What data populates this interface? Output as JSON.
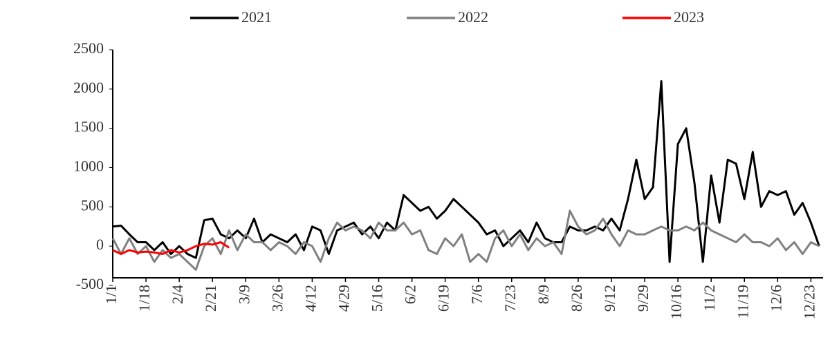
{
  "chart_data": {
    "type": "line",
    "categories": [
      "1/1",
      null,
      null,
      null,
      "1/18",
      null,
      null,
      null,
      "2/4",
      null,
      null,
      null,
      "2/21",
      null,
      null,
      null,
      "3/9",
      null,
      null,
      null,
      "3/26",
      null,
      null,
      null,
      "4/12",
      null,
      null,
      null,
      "4/29",
      null,
      null,
      null,
      "5/16",
      null,
      null,
      null,
      "6/2",
      null,
      null,
      null,
      "6/19",
      null,
      null,
      null,
      "7/6",
      null,
      null,
      null,
      "7/23",
      null,
      null,
      null,
      "8/9",
      null,
      null,
      null,
      "8/26",
      null,
      null,
      null,
      "9/12",
      null,
      null,
      null,
      "9/29",
      null,
      null,
      null,
      "10/16",
      null,
      null,
      null,
      "11/2",
      null,
      null,
      null,
      "11/19",
      null,
      null,
      null,
      "12/6",
      null,
      null,
      null,
      "12/23",
      null
    ],
    "series": [
      {
        "name": "2021",
        "color": "#000000",
        "values": [
          250,
          260,
          150,
          50,
          50,
          -50,
          50,
          -100,
          0,
          -100,
          -150,
          330,
          350,
          150,
          100,
          200,
          100,
          350,
          50,
          150,
          100,
          50,
          150,
          -50,
          250,
          200,
          -100,
          200,
          250,
          300,
          150,
          250,
          100,
          300,
          200,
          650,
          550,
          450,
          500,
          350,
          450,
          600,
          500,
          400,
          300,
          150,
          200,
          0,
          100,
          200,
          50,
          300,
          100,
          50,
          50,
          250,
          200,
          200,
          250,
          200,
          350,
          200,
          600,
          1100,
          600,
          750,
          2100,
          -200,
          1300,
          1500,
          800,
          -200,
          900,
          300,
          1100,
          1050,
          600,
          1200,
          500,
          700,
          650,
          700,
          400,
          550,
          300,
          0
        ]
      },
      {
        "name": "2022",
        "color": "#808080",
        "values": [
          100,
          -100,
          100,
          -100,
          0,
          -200,
          -50,
          -150,
          -100,
          -200,
          -300,
          0,
          100,
          -100,
          200,
          -50,
          150,
          50,
          50,
          -50,
          50,
          0,
          -100,
          50,
          0,
          -200,
          100,
          300,
          200,
          250,
          200,
          100,
          300,
          200,
          200,
          300,
          150,
          200,
          -50,
          -100,
          100,
          0,
          150,
          -200,
          -100,
          -200,
          100,
          200,
          0,
          150,
          -50,
          100,
          0,
          50,
          -100,
          450,
          250,
          150,
          200,
          350,
          150,
          0,
          200,
          150,
          150,
          200,
          250,
          200,
          200,
          250,
          200,
          300,
          200,
          150,
          100,
          50,
          150,
          50,
          50,
          0,
          100,
          -50,
          50,
          -100,
          50,
          0
        ]
      },
      {
        "name": "2023",
        "color": "#ff0000",
        "values": [
          -50,
          -100,
          -50,
          -80,
          -70,
          -80,
          -100,
          -50,
          -80,
          -50,
          0,
          30,
          20,
          50,
          -20,
          null,
          null,
          null,
          null,
          null,
          null,
          null,
          null,
          null,
          null,
          null,
          null,
          null,
          null,
          null,
          null,
          null,
          null,
          null,
          null,
          null,
          null,
          null,
          null,
          null,
          null,
          null,
          null,
          null,
          null,
          null,
          null,
          null,
          null,
          null,
          null,
          null,
          null,
          null,
          null,
          null,
          null,
          null,
          null,
          null,
          null,
          null,
          null,
          null,
          null,
          null,
          null,
          null,
          null,
          null,
          null,
          null,
          null,
          null,
          null,
          null,
          null,
          null,
          null,
          null,
          null,
          null,
          null,
          null,
          null,
          null
        ]
      }
    ],
    "ylim": [
      -500,
      2500
    ],
    "yticks": [
      -500,
      0,
      500,
      1000,
      1500,
      2000,
      2500
    ],
    "grid": false,
    "legend": "top"
  }
}
